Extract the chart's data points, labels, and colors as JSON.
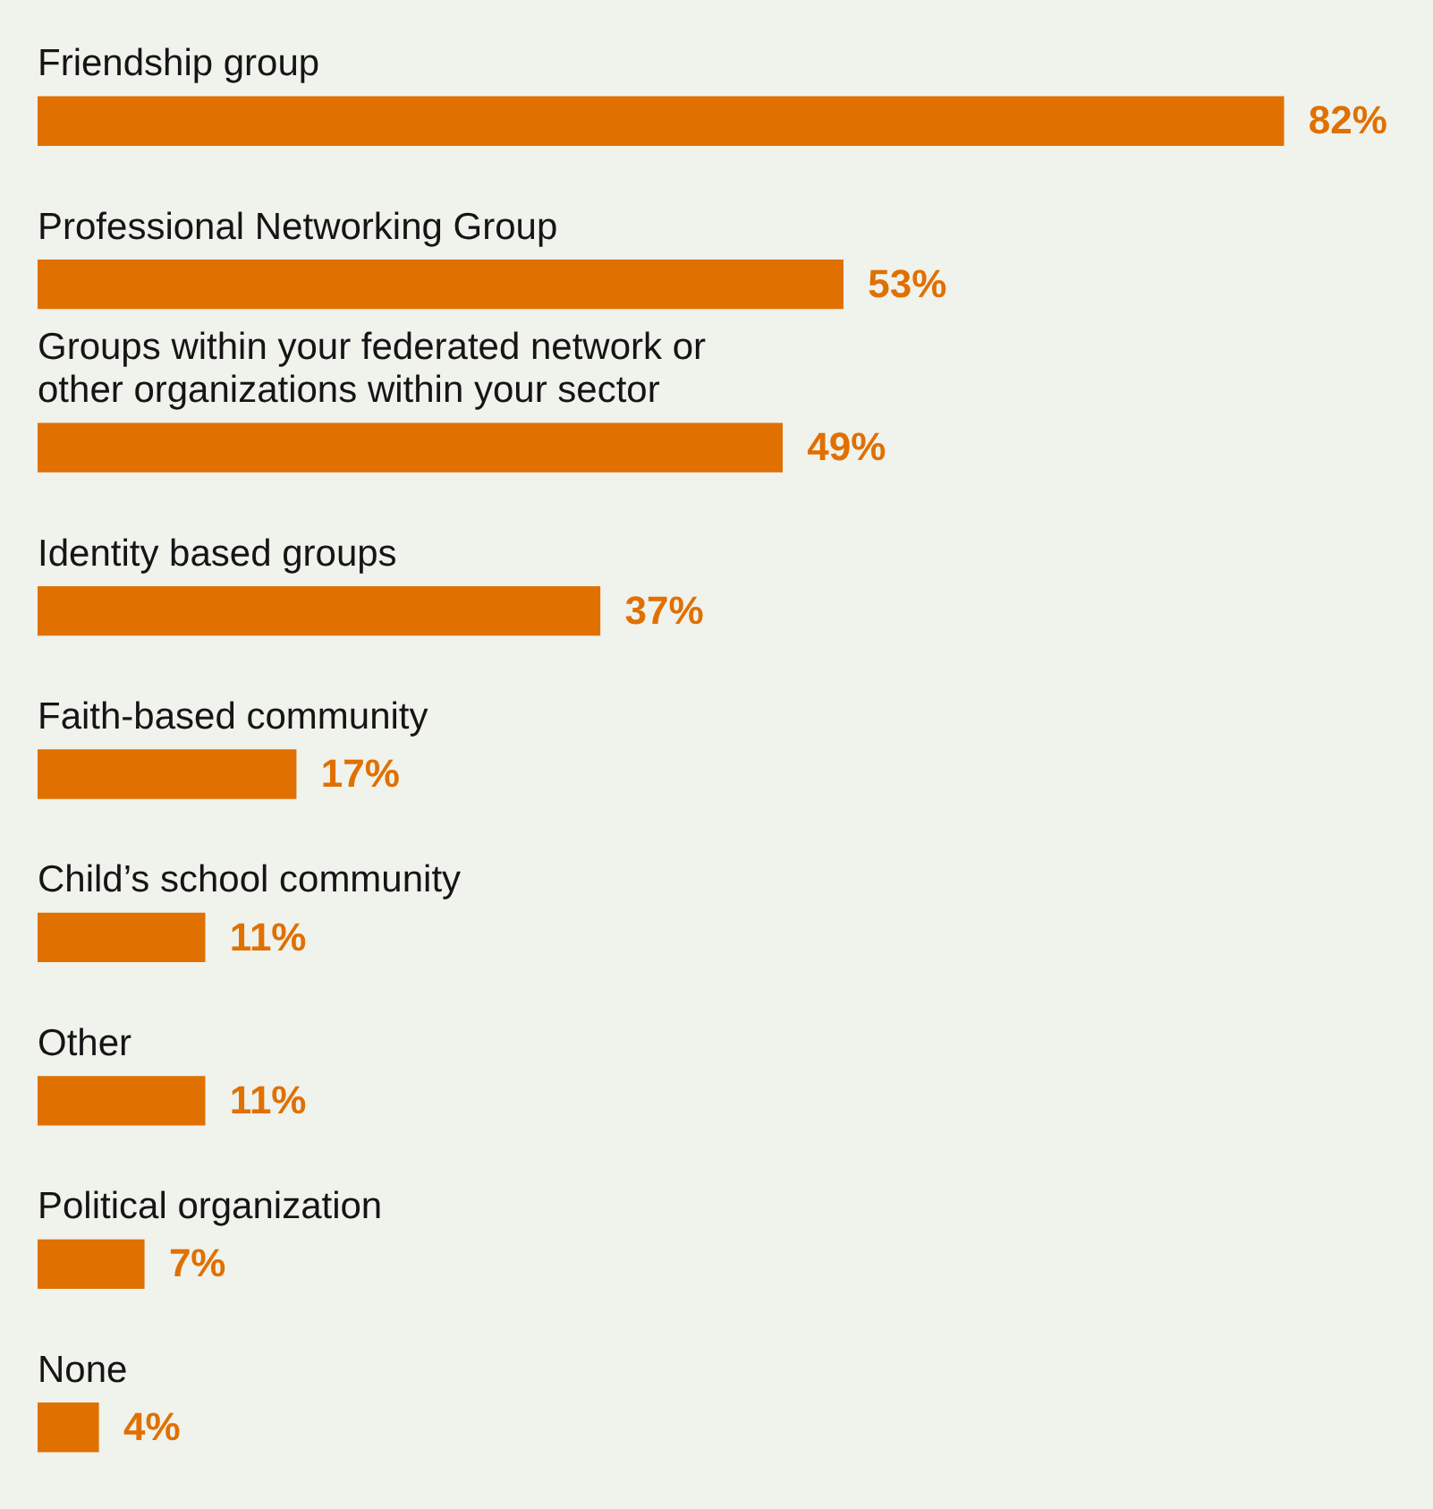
{
  "chart_data": {
    "type": "bar",
    "orientation": "horizontal",
    "categories": [
      "Friendship group",
      "Professional Networking Group",
      "Groups within your federated network or other organizations within your sector",
      "Identity based groups",
      "Faith-based community",
      "Child’s school community",
      "Other",
      "Political organization",
      "None"
    ],
    "values": [
      82,
      53,
      49,
      37,
      17,
      11,
      11,
      7,
      4
    ],
    "value_labels": [
      "82%",
      "53%",
      "49%",
      "37%",
      "17%",
      "11%",
      "11%",
      "7%",
      "4%"
    ],
    "color": "#e07000"
  }
}
